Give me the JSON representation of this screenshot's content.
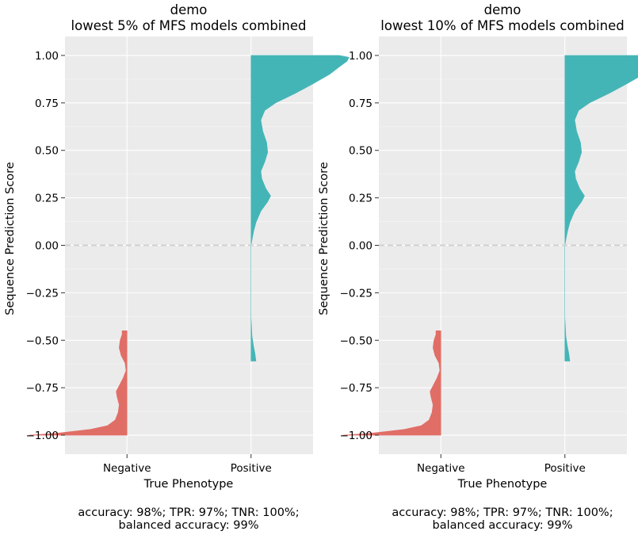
{
  "panels": [
    {
      "title_line1": "demo",
      "title_line2": "lowest 5% of MFS models combined",
      "xlabel": "True Phenotype",
      "ylabel": "Sequence Prediction Score",
      "footer_line1": "accuracy: 98%; TPR: 97%; TNR: 100%;",
      "footer_line2": "balanced accuracy: 99%"
    },
    {
      "title_line1": "demo",
      "title_line2": "lowest 10% of MFS models combined",
      "xlabel": "True Phenotype",
      "ylabel": "Sequence Prediction Score",
      "footer_line1": "accuracy: 98%; TPR: 97%; TNR: 100%;",
      "footer_line2": "balanced accuracy: 99%"
    }
  ],
  "chart_data": [
    {
      "type": "violin",
      "title": "demo\nlowest 5% of MFS models combined",
      "xlabel": "True Phenotype",
      "ylabel": "Sequence Prediction Score",
      "categories": [
        "Negative",
        "Positive"
      ],
      "ylim": [
        -1.1,
        1.1
      ],
      "yticks": [
        "1.00",
        "0.75",
        "0.50",
        "0.25",
        "0.00",
        "−0.25",
        "−0.50",
        "−0.75",
        "−1.00"
      ],
      "reference_line_y": 0.0,
      "grid": true,
      "background": "#ebebeb",
      "series": [
        {
          "name": "Negative",
          "color": "#e06e66",
          "side": "left",
          "y_min": -1.0,
          "y_max": -0.45,
          "density": [
            [
              -1.0,
              1.0
            ],
            [
              -0.99,
              0.72
            ],
            [
              -0.97,
              0.38
            ],
            [
              -0.95,
              0.2
            ],
            [
              -0.92,
              0.12
            ],
            [
              -0.88,
              0.09
            ],
            [
              -0.84,
              0.08
            ],
            [
              -0.8,
              0.1
            ],
            [
              -0.77,
              0.11
            ],
            [
              -0.74,
              0.08
            ],
            [
              -0.7,
              0.04
            ],
            [
              -0.66,
              0.01
            ],
            [
              -0.62,
              0.02
            ],
            [
              -0.58,
              0.06
            ],
            [
              -0.54,
              0.08
            ],
            [
              -0.5,
              0.07
            ],
            [
              -0.47,
              0.05
            ],
            [
              -0.45,
              0.05
            ]
          ]
        },
        {
          "name": "Positive",
          "color": "#44b5b7",
          "side": "right",
          "y_min": -0.61,
          "y_max": 1.0,
          "density": [
            [
              -0.61,
              0.05
            ],
            [
              -0.57,
              0.04
            ],
            [
              -0.53,
              0.025
            ],
            [
              -0.48,
              0.01
            ],
            [
              -0.43,
              0.005
            ],
            [
              -0.38,
              0.0
            ],
            [
              0.0,
              0.0
            ],
            [
              0.03,
              0.01
            ],
            [
              0.07,
              0.025
            ],
            [
              0.12,
              0.05
            ],
            [
              0.18,
              0.1
            ],
            [
              0.23,
              0.17
            ],
            [
              0.26,
              0.2
            ],
            [
              0.3,
              0.15
            ],
            [
              0.35,
              0.11
            ],
            [
              0.39,
              0.1
            ],
            [
              0.44,
              0.14
            ],
            [
              0.49,
              0.17
            ],
            [
              0.54,
              0.16
            ],
            [
              0.6,
              0.12
            ],
            [
              0.66,
              0.1
            ],
            [
              0.71,
              0.14
            ],
            [
              0.75,
              0.25
            ],
            [
              0.8,
              0.45
            ],
            [
              0.85,
              0.63
            ],
            [
              0.9,
              0.8
            ],
            [
              0.94,
              0.9
            ],
            [
              0.97,
              0.98
            ],
            [
              0.99,
              1.0
            ],
            [
              1.0,
              0.9
            ]
          ]
        }
      ]
    },
    {
      "type": "violin",
      "title": "demo\nlowest 10% of MFS models combined",
      "xlabel": "True Phenotype",
      "ylabel": "Sequence Prediction Score",
      "categories": [
        "Negative",
        "Positive"
      ],
      "ylim": [
        -1.1,
        1.1
      ],
      "yticks": [
        "1.00",
        "0.75",
        "0.50",
        "0.25",
        "0.00",
        "−0.25",
        "−0.50",
        "−0.75",
        "−1.00"
      ],
      "reference_line_y": 0.0,
      "grid": true,
      "background": "#ebebeb",
      "series": [
        {
          "name": "Negative",
          "color": "#e06e66",
          "side": "left",
          "y_min": -1.0,
          "y_max": -0.45,
          "density": [
            [
              -1.0,
              1.0
            ],
            [
              -0.99,
              0.72
            ],
            [
              -0.97,
              0.38
            ],
            [
              -0.95,
              0.2
            ],
            [
              -0.92,
              0.12
            ],
            [
              -0.88,
              0.09
            ],
            [
              -0.84,
              0.08
            ],
            [
              -0.8,
              0.1
            ],
            [
              -0.77,
              0.11
            ],
            [
              -0.74,
              0.08
            ],
            [
              -0.7,
              0.04
            ],
            [
              -0.66,
              0.01
            ],
            [
              -0.62,
              0.02
            ],
            [
              -0.58,
              0.06
            ],
            [
              -0.54,
              0.08
            ],
            [
              -0.5,
              0.07
            ],
            [
              -0.47,
              0.05
            ],
            [
              -0.45,
              0.05
            ]
          ]
        },
        {
          "name": "Positive",
          "color": "#44b5b7",
          "side": "right",
          "y_min": -0.61,
          "y_max": 1.0,
          "density": [
            [
              -0.61,
              0.05
            ],
            [
              -0.57,
              0.04
            ],
            [
              -0.53,
              0.025
            ],
            [
              -0.48,
              0.01
            ],
            [
              -0.43,
              0.005
            ],
            [
              -0.38,
              0.0
            ],
            [
              0.0,
              0.0
            ],
            [
              0.03,
              0.01
            ],
            [
              0.07,
              0.025
            ],
            [
              0.12,
              0.05
            ],
            [
              0.18,
              0.1
            ],
            [
              0.23,
              0.17
            ],
            [
              0.26,
              0.2
            ],
            [
              0.3,
              0.15
            ],
            [
              0.35,
              0.11
            ],
            [
              0.39,
              0.1
            ],
            [
              0.44,
              0.14
            ],
            [
              0.49,
              0.17
            ],
            [
              0.54,
              0.16
            ],
            [
              0.6,
              0.12
            ],
            [
              0.66,
              0.1
            ],
            [
              0.71,
              0.14
            ],
            [
              0.75,
              0.25
            ],
            [
              0.8,
              0.45
            ],
            [
              0.85,
              0.63
            ],
            [
              0.9,
              0.8
            ],
            [
              0.94,
              0.9
            ],
            [
              0.97,
              0.98
            ],
            [
              0.99,
              1.0
            ],
            [
              1.0,
              0.9
            ]
          ]
        }
      ]
    }
  ]
}
